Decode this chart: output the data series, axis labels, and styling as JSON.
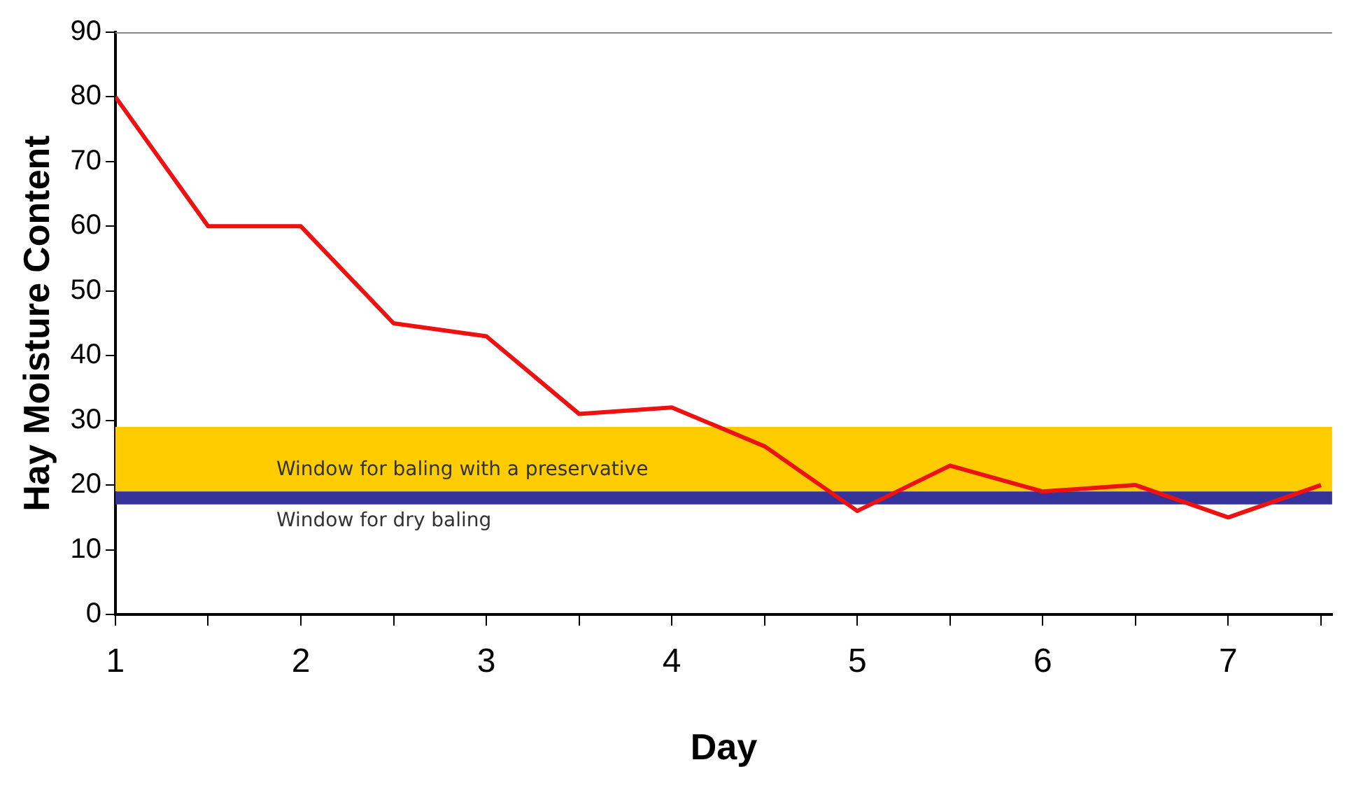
{
  "chart_data": {
    "type": "line",
    "xlabel": "Day",
    "ylabel": "Hay Moisture Content",
    "series": [
      {
        "color": "#ee1111",
        "x": [
          1,
          1.5,
          2,
          2.5,
          3,
          3.5,
          4,
          4.5,
          5,
          5.5,
          6,
          6.5,
          7,
          7.5
        ],
        "values": [
          80,
          60,
          60,
          45,
          43,
          31,
          32,
          26,
          16,
          23,
          19,
          20,
          15,
          20
        ]
      }
    ],
    "xlim": [
      1,
      7.56
    ],
    "xticks": [
      1,
      {
        "value": 1.5,
        "label": null
      },
      2,
      {
        "value": 2.5,
        "label": null
      },
      3,
      {
        "value": 3.5,
        "label": null
      },
      4,
      {
        "value": 4.5,
        "label": null
      },
      5,
      {
        "value": 5.5,
        "label": null
      },
      6,
      {
        "value": 6.5,
        "label": null
      },
      7,
      {
        "value": 7.5,
        "label": null
      }
    ],
    "ylim": [
      0,
      90
    ],
    "yticks": [
      0,
      10,
      20,
      30,
      40,
      50,
      60,
      70,
      80,
      90
    ],
    "bands": [
      {
        "axis": "y",
        "from": 19,
        "to": 29,
        "label": "Window for baling with a preservative",
        "color": "#ffcc00"
      },
      {
        "axis": "y",
        "from": 17,
        "to": 19,
        "label": "Window for dry baling",
        "color": "#333399"
      }
    ],
    "grid": false,
    "legend": false,
    "marker": "none",
    "line_style": "solid"
  }
}
